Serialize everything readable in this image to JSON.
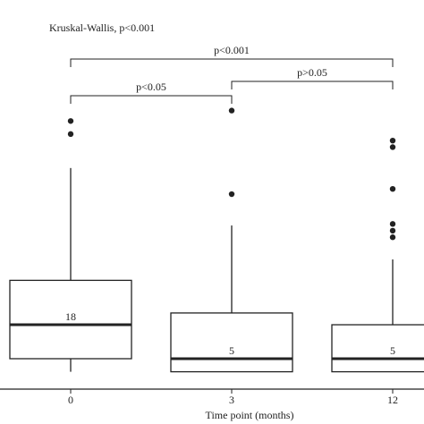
{
  "chart_data": {
    "type": "box",
    "title": "Kruskal-Wallis, p<0.001",
    "x_label": "Time point (months)",
    "categories": [
      "0",
      "3",
      "12"
    ],
    "boxes": [
      {
        "min": 0,
        "q1": 5,
        "median": 18,
        "q3": 35,
        "max": 78,
        "outliers": [
          91,
          96
        ]
      },
      {
        "min": 0,
        "q1": 0,
        "median": 5,
        "q3": 22.5,
        "max": 56,
        "outliers": [
          68,
          100
        ]
      },
      {
        "min": 0,
        "q1": 0,
        "median": 5,
        "q3": 18,
        "max": 43,
        "outliers": [
          51.5,
          54,
          56.6,
          70,
          86,
          88.5
        ]
      }
    ],
    "comparisons": [
      "p<0.001",
      "p<0.05",
      "p>0.05"
    ],
    "ylim": [
      0,
      100
    ],
    "color": "#222222"
  }
}
